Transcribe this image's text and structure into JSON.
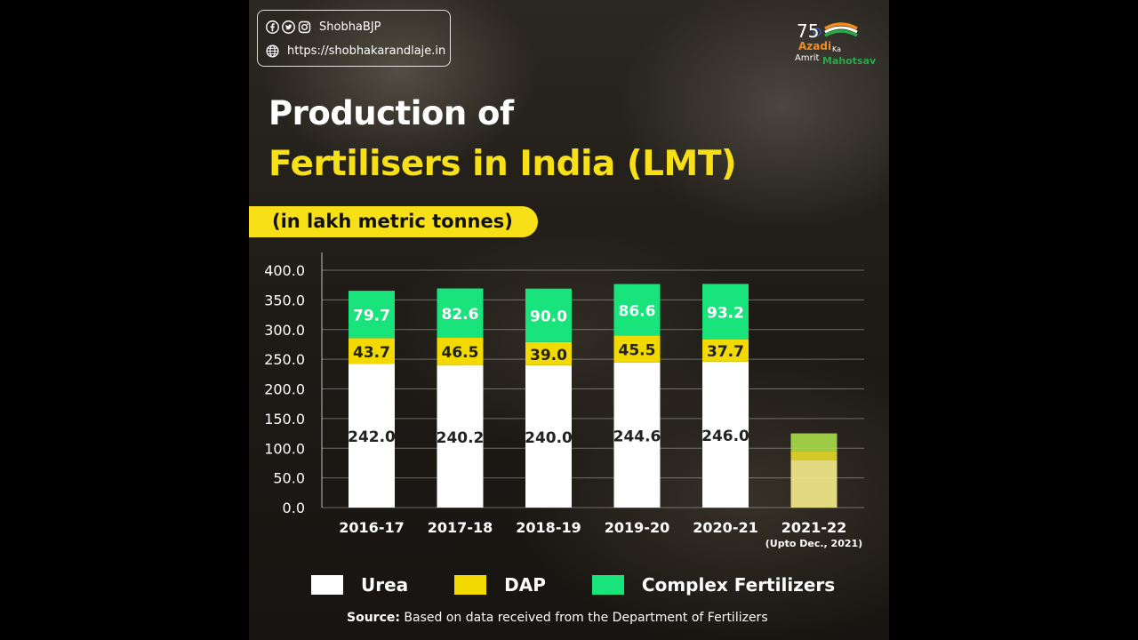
{
  "header": {
    "social_handle": "ShobhaBJP",
    "website": "https://shobhakarandlaje.in",
    "logo": {
      "line1": "75",
      "line2": "Azadi",
      "line3": "Ka",
      "line4": "Amrit",
      "line5": "Mahotsav"
    }
  },
  "title": {
    "line1": "Production of",
    "line2": "Fertilisers in India (LMT)"
  },
  "subtitle": "(in lakh metric tonnes)",
  "legend": [
    {
      "label": "Urea",
      "color": "#ffffff"
    },
    {
      "label": "DAP",
      "color": "#f2d900"
    },
    {
      "label": "Complex Fertilizers",
      "color": "#19e47c"
    }
  ],
  "source": {
    "label": "Source:",
    "text": " Based on data received from the Department of Fertilizers"
  },
  "chart_data": {
    "type": "bar",
    "stacked": true,
    "categories": [
      "2016-17",
      "2017-18",
      "2018-19",
      "2019-20",
      "2020-21",
      "2021-22"
    ],
    "category_notes": [
      "",
      "",
      "",
      "",
      "",
      "(Upto Dec., 2021)"
    ],
    "series": [
      {
        "name": "Urea",
        "color": "#ffffff",
        "values": [
          242.0,
          240.2,
          240.0,
          244.6,
          246.0,
          80.0
        ]
      },
      {
        "name": "DAP",
        "color": "#f2d900",
        "values": [
          43.7,
          46.5,
          39.0,
          45.5,
          37.7,
          15.0
        ]
      },
      {
        "name": "Complex Fertilizers",
        "color": "#19e47c",
        "values": [
          79.7,
          82.6,
          90.0,
          86.6,
          93.2,
          30.0
        ]
      }
    ],
    "data_labels": [
      [
        "242.0",
        "240.2",
        "240.0",
        "244.6",
        "246.0",
        ""
      ],
      [
        "43.7",
        "46.5",
        "39.0",
        "45.5",
        "37.7",
        ""
      ],
      [
        "79.7",
        "82.6",
        "90.0",
        "86.6",
        "93.2",
        ""
      ]
    ],
    "last_bar_faded": true,
    "yticks": [
      "0.0",
      "50.0",
      "100.0",
      "150.0",
      "200.0",
      "250.0",
      "300.0",
      "350.0",
      "400.0"
    ],
    "ylim": [
      0,
      400
    ],
    "grid": true,
    "legend_position": "bottom"
  }
}
